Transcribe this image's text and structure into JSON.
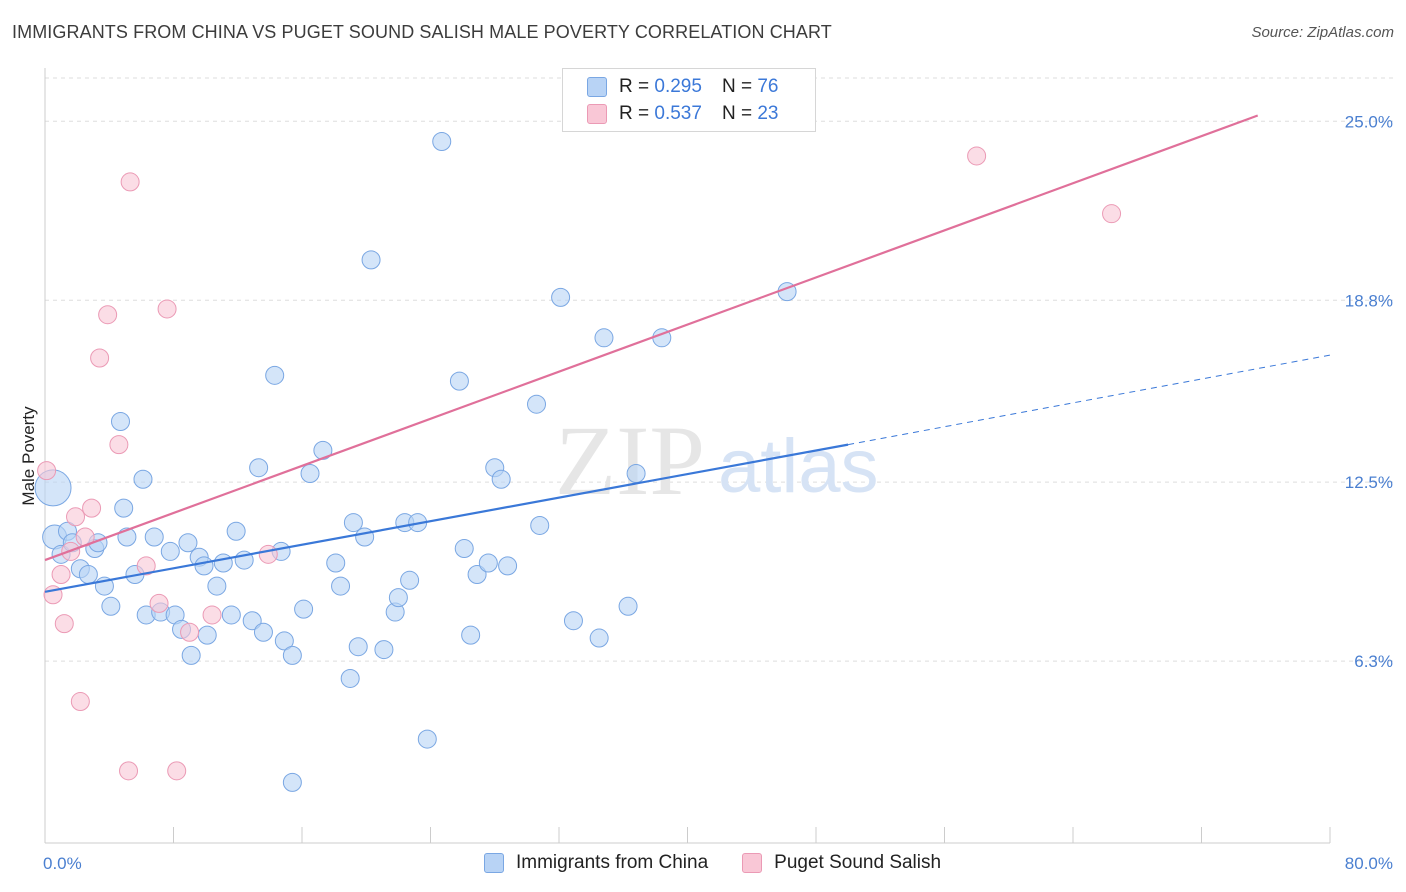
{
  "title": "IMMIGRANTS FROM CHINA VS PUGET SOUND SALISH MALE POVERTY CORRELATION CHART",
  "source": "Source: ZipAtlas.com",
  "watermark": {
    "zip": "ZIP",
    "atlas": "atlas"
  },
  "legend": {
    "rows": [
      {
        "r_label": "R =",
        "r_value": "0.295",
        "n_label": "N =",
        "n_value": "76"
      },
      {
        "r_label": "R =",
        "r_value": "0.537",
        "n_label": "N =",
        "n_value": "23"
      }
    ]
  },
  "colors": {
    "blue": "#3a78d8",
    "blue_fill": "#b8d3f5",
    "pink": "#e0709a",
    "pink_fill": "#f9c7d6",
    "grid": "#dddddd",
    "tick_text": "#4a7fd0"
  },
  "chart_data": {
    "type": "scatter",
    "title": "IMMIGRANTS FROM CHINA VS PUGET SOUND SALISH MALE POVERTY CORRELATION CHART",
    "xlabel": "",
    "ylabel": "Male Poverty",
    "xlim": [
      0,
      80
    ],
    "ylim": [
      0,
      26.5
    ],
    "x_tick_labels": [
      "0.0%",
      "80.0%"
    ],
    "y_ticks": [
      6.3,
      12.5,
      18.8,
      25.0
    ],
    "y_tick_labels": [
      "6.3%",
      "12.5%",
      "18.8%",
      "25.0%"
    ],
    "series": [
      {
        "name": "Immigrants from China",
        "r": 0.295,
        "n": 76,
        "trend": {
          "x0": 0,
          "y0": 8.7,
          "x1": 50,
          "y1": 13.8,
          "dashed_to_x": 80,
          "dashed_y1": 16.9
        },
        "points": [
          [
            0.5,
            12.3,
            18
          ],
          [
            0.6,
            10.6,
            12
          ],
          [
            1.0,
            10.0,
            9
          ],
          [
            1.4,
            10.8,
            9
          ],
          [
            1.7,
            10.4,
            9
          ],
          [
            2.2,
            9.5,
            9
          ],
          [
            2.7,
            9.3,
            9
          ],
          [
            3.1,
            10.2,
            9
          ],
          [
            3.3,
            10.4,
            9
          ],
          [
            3.7,
            8.9,
            9
          ],
          [
            4.1,
            8.2,
            9
          ],
          [
            4.7,
            14.6,
            9
          ],
          [
            4.9,
            11.6,
            9
          ],
          [
            5.1,
            10.6,
            9
          ],
          [
            5.6,
            9.3,
            9
          ],
          [
            6.1,
            12.6,
            9
          ],
          [
            6.3,
            7.9,
            9
          ],
          [
            6.8,
            10.6,
            9
          ],
          [
            7.2,
            8.0,
            9
          ],
          [
            7.8,
            10.1,
            9
          ],
          [
            8.1,
            7.9,
            9
          ],
          [
            8.5,
            7.4,
            9
          ],
          [
            8.9,
            10.4,
            9
          ],
          [
            9.1,
            6.5,
            9
          ],
          [
            9.6,
            9.9,
            9
          ],
          [
            9.9,
            9.6,
            9
          ],
          [
            10.1,
            7.2,
            9
          ],
          [
            10.7,
            8.9,
            9
          ],
          [
            11.1,
            9.7,
            9
          ],
          [
            11.6,
            7.9,
            9
          ],
          [
            11.9,
            10.8,
            9
          ],
          [
            12.4,
            9.8,
            9
          ],
          [
            12.9,
            7.7,
            9
          ],
          [
            13.3,
            13.0,
            9
          ],
          [
            13.6,
            7.3,
            9
          ],
          [
            14.3,
            16.2,
            9
          ],
          [
            14.7,
            10.1,
            9
          ],
          [
            14.9,
            7.0,
            9
          ],
          [
            15.4,
            6.5,
            9
          ],
          [
            16.1,
            8.1,
            9
          ],
          [
            16.5,
            12.8,
            9
          ],
          [
            17.3,
            13.6,
            9
          ],
          [
            18.1,
            9.7,
            9
          ],
          [
            18.4,
            8.9,
            9
          ],
          [
            19.0,
            5.7,
            9
          ],
          [
            19.2,
            11.1,
            9
          ],
          [
            19.5,
            6.8,
            9
          ],
          [
            19.9,
            10.6,
            9
          ],
          [
            20.3,
            20.2,
            9
          ],
          [
            21.1,
            6.7,
            9
          ],
          [
            21.8,
            8.0,
            9
          ],
          [
            22.0,
            8.5,
            9
          ],
          [
            22.4,
            11.1,
            9
          ],
          [
            22.7,
            9.1,
            9
          ],
          [
            23.2,
            11.1,
            9
          ],
          [
            23.8,
            3.6,
            9
          ],
          [
            24.7,
            24.3,
            9
          ],
          [
            25.8,
            16.0,
            9
          ],
          [
            26.1,
            10.2,
            9
          ],
          [
            26.5,
            7.2,
            9
          ],
          [
            26.9,
            9.3,
            9
          ],
          [
            27.6,
            9.7,
            9
          ],
          [
            28.0,
            13.0,
            9
          ],
          [
            28.4,
            12.6,
            9
          ],
          [
            28.8,
            9.6,
            9
          ],
          [
            30.6,
            15.2,
            9
          ],
          [
            30.8,
            11.0,
            9
          ],
          [
            32.1,
            18.9,
            9
          ],
          [
            32.9,
            7.7,
            9
          ],
          [
            34.8,
            17.5,
            9
          ],
          [
            34.5,
            7.1,
            9
          ],
          [
            36.3,
            8.2,
            9
          ],
          [
            36.8,
            12.8,
            9
          ],
          [
            38.4,
            17.5,
            9
          ],
          [
            46.2,
            19.1,
            9
          ],
          [
            15.4,
            2.1,
            9
          ]
        ]
      },
      {
        "name": "Puget Sound Salish",
        "r": 0.537,
        "n": 23,
        "trend": {
          "x0": 0,
          "y0": 9.8,
          "x1": 75.5,
          "y1": 25.2
        },
        "points": [
          [
            0.1,
            12.9,
            9
          ],
          [
            0.5,
            8.6,
            9
          ],
          [
            1.0,
            9.3,
            9
          ],
          [
            1.2,
            7.6,
            9
          ],
          [
            1.6,
            10.1,
            9
          ],
          [
            1.9,
            11.3,
            9
          ],
          [
            2.2,
            4.9,
            9
          ],
          [
            2.5,
            10.6,
            9
          ],
          [
            2.9,
            11.6,
            9
          ],
          [
            3.4,
            16.8,
            9
          ],
          [
            3.9,
            18.3,
            9
          ],
          [
            4.6,
            13.8,
            9
          ],
          [
            5.2,
            2.5,
            9
          ],
          [
            5.3,
            22.9,
            9
          ],
          [
            6.3,
            9.6,
            9
          ],
          [
            7.1,
            8.3,
            9
          ],
          [
            7.6,
            18.5,
            9
          ],
          [
            8.2,
            2.5,
            9
          ],
          [
            9.0,
            7.3,
            9
          ],
          [
            10.4,
            7.9,
            9
          ],
          [
            13.9,
            10.0,
            9
          ],
          [
            58.0,
            23.8,
            9
          ],
          [
            66.4,
            21.8,
            9
          ]
        ]
      }
    ]
  },
  "bottom_legend": [
    {
      "label": "Immigrants from China"
    },
    {
      "label": "Puget Sound Salish"
    }
  ]
}
